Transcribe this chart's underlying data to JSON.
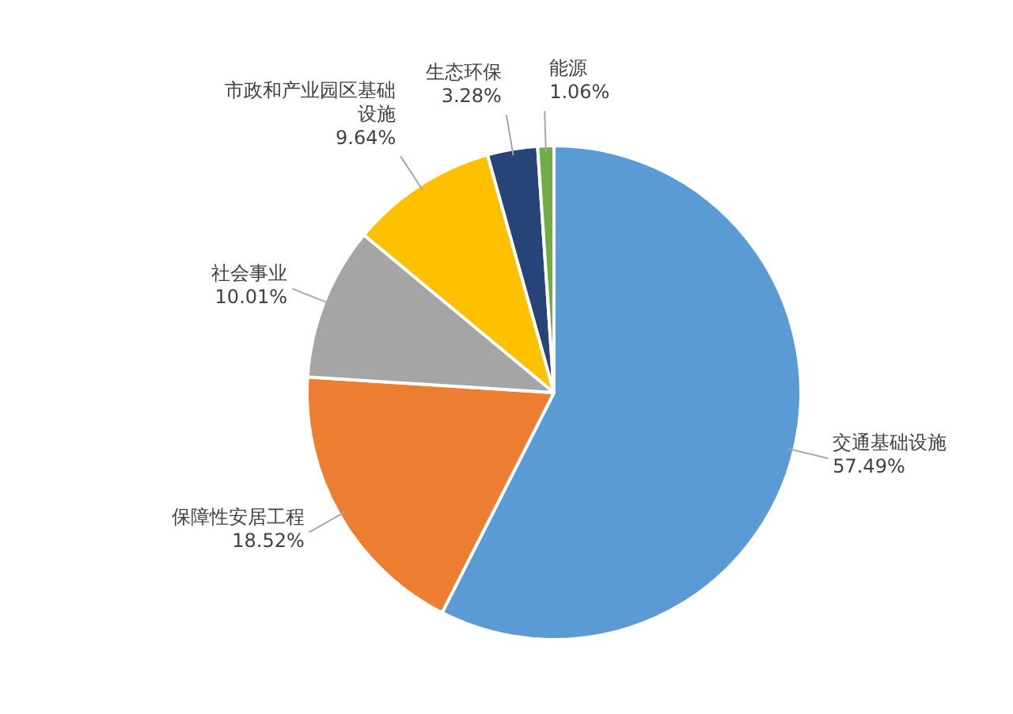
{
  "chart_data": {
    "type": "pie",
    "categories": [
      "交通基础设施",
      "保障性安居工程",
      "社会事业",
      "市政和产业园区基础设施",
      "生态环保",
      "能源"
    ],
    "values": [
      57.49,
      18.52,
      10.01,
      9.64,
      3.28,
      1.06
    ],
    "value_labels": [
      "57.49%",
      "18.52%",
      "10.01%",
      "9.64%",
      "3.28%",
      "1.06%"
    ],
    "colors": [
      "#5b9bd5",
      "#ed7d31",
      "#a5a5a5",
      "#ffc000",
      "#264478",
      "#70ad47"
    ],
    "legend": false
  }
}
